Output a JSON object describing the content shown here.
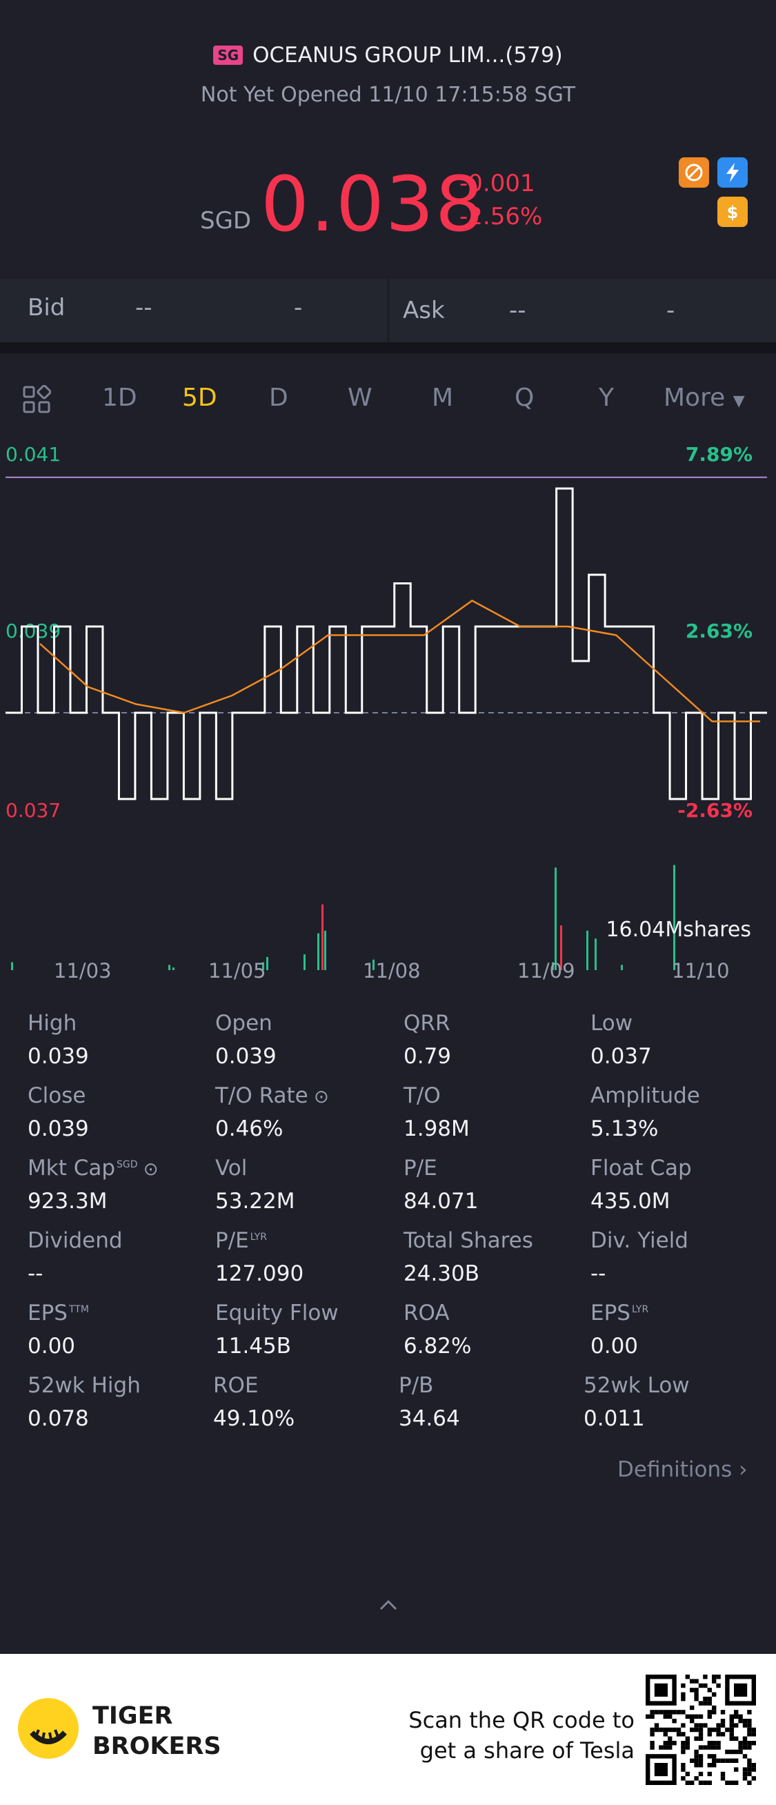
{
  "header": {
    "market_badge": "SG",
    "stock_title": "OCEANUS GROUP LIM...(579)",
    "status_line": "Not Yet Opened 11/10 17:15:58 SGT"
  },
  "quote": {
    "currency": "SGD",
    "price": "0.038",
    "change": "-0.001",
    "change_pct": "-2.56%"
  },
  "icons": [
    "no-short-icon",
    "lightning-icon",
    "dollar-icon"
  ],
  "bid_ask": {
    "bid_label": "Bid",
    "bid_price": "--",
    "bid_size": "-",
    "ask_label": "Ask",
    "ask_price": "--",
    "ask_size": "-"
  },
  "tabs": {
    "grid_icon": "grid-icon",
    "items": [
      "1D",
      "5D",
      "D",
      "W",
      "M",
      "Q",
      "Y"
    ],
    "active": "5D",
    "more_label": "More"
  },
  "chart_data": {
    "type": "line",
    "y_left_labels": [
      "0.041",
      "0.039",
      "0.037"
    ],
    "y_right_labels": [
      "7.89%",
      "2.63%",
      "-2.63%"
    ],
    "prev_close": 0.038,
    "ylim": [
      0.037,
      0.041
    ],
    "x_labels": [
      "11/03",
      "11/05",
      "11/08",
      "11/09",
      "11/10"
    ],
    "volume_label": "16.04Mshares",
    "price_series": [
      0.038,
      0.039,
      0.038,
      0.039,
      0.038,
      0.039,
      0.038,
      0.037,
      0.038,
      0.037,
      0.038,
      0.037,
      0.038,
      0.037,
      0.038,
      0.038,
      0.039,
      0.038,
      0.039,
      0.038,
      0.039,
      0.038,
      0.039,
      0.039,
      0.0395,
      0.039,
      0.038,
      0.039,
      0.038,
      0.039,
      0.039,
      0.039,
      0.039,
      0.039,
      0.0406,
      0.0386,
      0.0396,
      0.039,
      0.039,
      0.039,
      0.038,
      0.037,
      0.038,
      0.037,
      0.038,
      0.037,
      0.038,
      0.038
    ],
    "avg_series": [
      0.0388,
      0.0383,
      0.0381,
      0.038,
      0.0382,
      0.0385,
      0.0389,
      0.0389,
      0.0389,
      0.0393,
      0.039,
      0.039,
      0.0389,
      0.0384,
      0.0379,
      0.0379
    ],
    "volume_bars_m": [
      0.3,
      0.2,
      0.1,
      0.3,
      0.5,
      0.6,
      1.4,
      2.5,
      1.5,
      0.4,
      0.3,
      3.9,
      1.7,
      1.5,
      1.2,
      4.0,
      0.2
    ]
  },
  "stats": [
    {
      "label": "High",
      "value": "0.039"
    },
    {
      "label": "Open",
      "value": "0.039"
    },
    {
      "label": "QRR",
      "value": "0.79"
    },
    {
      "label": "Low",
      "value": "0.037"
    },
    {
      "label": "Close",
      "value": "0.039"
    },
    {
      "label": "T/O Rate",
      "value": "0.46%"
    },
    {
      "label": "T/O",
      "value": "1.98M"
    },
    {
      "label": "Amplitude",
      "value": "5.13%"
    },
    {
      "label": "Mkt Cap",
      "value": "923.3M",
      "sup": "SGD"
    },
    {
      "label": "Vol",
      "value": "53.22M"
    },
    {
      "label": "P/E",
      "value": "84.071"
    },
    {
      "label": "Float Cap",
      "value": "435.0M"
    },
    {
      "label": "Dividend",
      "value": "--"
    },
    {
      "label": "P/E",
      "value": "127.090",
      "sup": "LYR"
    },
    {
      "label": "Total Shares",
      "value": "24.30B"
    },
    {
      "label": "Div. Yield",
      "value": "--"
    },
    {
      "label": "EPS",
      "value": "0.00",
      "sup": "TTM"
    },
    {
      "label": "Equity Flow",
      "value": "11.45B"
    },
    {
      "label": "ROA",
      "value": "6.82%"
    },
    {
      "label": "EPS",
      "value": "0.00",
      "sup": "LYR"
    },
    {
      "label": "52wk High",
      "value": "0.078"
    },
    {
      "label": "ROE",
      "value": "49.10%"
    },
    {
      "label": "P/B",
      "value": "34.64"
    },
    {
      "label": "52wk Low",
      "value": "0.011"
    }
  ],
  "definitions_label": "Definitions",
  "footer": {
    "brand_line1": "TIGER",
    "brand_line2": "BROKERS",
    "qr_line1": "Scan the QR code to",
    "qr_line2": "get a share of Tesla"
  },
  "colors": {
    "red": "#f5334f",
    "green": "#27c18b",
    "gold": "#f5c518",
    "avg_line": "#f28b1f",
    "ref_line": "#b38bd6"
  }
}
